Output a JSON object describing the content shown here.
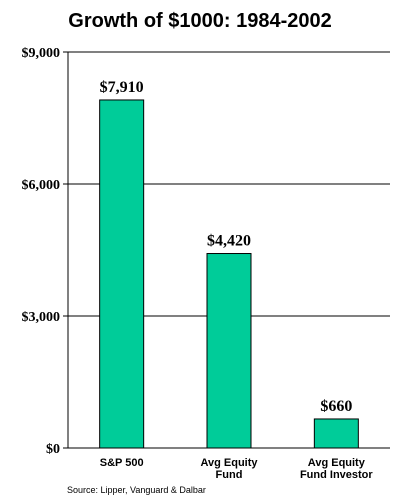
{
  "chart_data": {
    "type": "bar",
    "title": "Growth of $1000: 1984-2002",
    "categories": [
      [
        "S&P 500"
      ],
      [
        "Avg Equity",
        "Fund"
      ],
      [
        "Avg Equity",
        "Fund Investor"
      ]
    ],
    "values": [
      7910,
      4420,
      660
    ],
    "value_labels": [
      "$7,910",
      "$4,420",
      "$660"
    ],
    "ylim": [
      0,
      9000
    ],
    "yticks": [
      0,
      3000,
      6000,
      9000
    ],
    "ytick_labels": [
      "$0",
      "$3,000",
      "$6,000",
      "$9,000"
    ],
    "grid": true,
    "bar_color": "#00CC99",
    "source": "Source: Lipper, Vanguard & Dalbar"
  }
}
